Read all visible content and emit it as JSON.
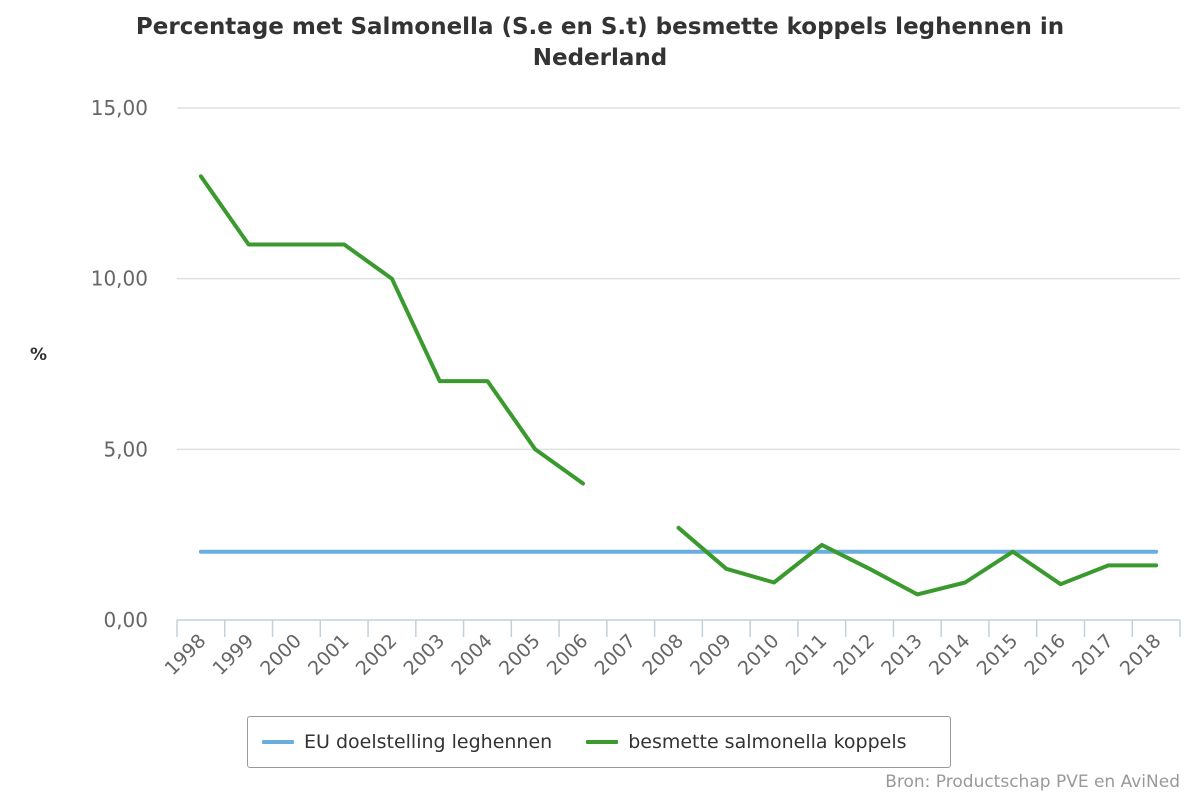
{
  "chart_data": {
    "type": "line",
    "title_lines": [
      "Percentage met Salmonella (S.e en S.t) besmette koppels leghennen in",
      "Nederland"
    ],
    "ylabel": "%",
    "xlabel": "",
    "categories": [
      "1998",
      "1999",
      "2000",
      "2001",
      "2002",
      "2003",
      "2004",
      "2005",
      "2006",
      "2007",
      "2008",
      "2009",
      "2010",
      "2011",
      "2012",
      "2013",
      "2014",
      "2015",
      "2016",
      "2017",
      "2018"
    ],
    "ylim": [
      0,
      15
    ],
    "yticks": [
      {
        "value": 0,
        "label": "0,00"
      },
      {
        "value": 5,
        "label": "5,00"
      },
      {
        "value": 10,
        "label": "10,00"
      },
      {
        "value": 15,
        "label": "15,00"
      }
    ],
    "grid": true,
    "legend_position": "bottom",
    "series": [
      {
        "name": "EU doelstelling leghennen",
        "color": "#6aaee0",
        "values": [
          2,
          2,
          2,
          2,
          2,
          2,
          2,
          2,
          2,
          2,
          2,
          2,
          2,
          2,
          2,
          2,
          2,
          2,
          2,
          2,
          2
        ]
      },
      {
        "name": "besmette salmonella koppels",
        "color": "#3a9a2e",
        "values": [
          13,
          11,
          11,
          11,
          10,
          7,
          7,
          5,
          4,
          null,
          2.7,
          1.5,
          1.1,
          2.2,
          1.5,
          0.75,
          1.1,
          2.0,
          1.05,
          1.6,
          1.6
        ]
      }
    ],
    "source": "Bron: Productschap PVE en AviNed"
  }
}
